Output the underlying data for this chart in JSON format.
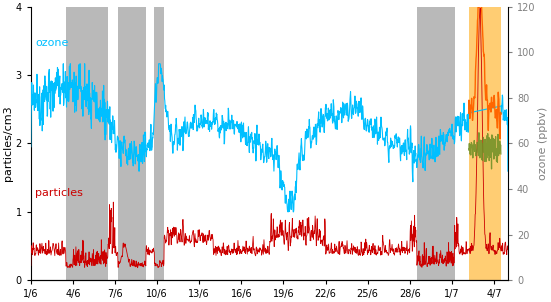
{
  "ylabel_left": "particles/cm3",
  "ylabel_right": "ozone (ppbv)",
  "xlim": [
    0,
    34
  ],
  "ylim_left": [
    0,
    4
  ],
  "ylim_right": [
    0,
    120
  ],
  "yticks_left": [
    0,
    1,
    2,
    3,
    4
  ],
  "yticks_right": [
    0,
    20,
    40,
    60,
    80,
    100,
    120
  ],
  "xtick_labels": [
    "1/6",
    "4/6",
    "7/6",
    "10/6",
    "13/6",
    "16/6",
    "19/6",
    "22/6",
    "25/6",
    "28/6",
    "1/7",
    "4/7"
  ],
  "xtick_positions": [
    0,
    3,
    6,
    9,
    12,
    15,
    18,
    21,
    24,
    27,
    30,
    33
  ],
  "ozone_label": "ozone",
  "particles_label": "particles",
  "ozone_color": "#00BFFF",
  "particles_color": "#CC0000",
  "orange_region_color": "#FFA500",
  "grey_regions": [
    [
      2.5,
      5.5
    ],
    [
      6.2,
      8.2
    ],
    [
      8.8,
      9.5
    ],
    [
      27.5,
      30.2
    ]
  ],
  "orange_region": [
    31.2,
    33.5
  ],
  "grey_color": "#808080",
  "grey_alpha": 0.55,
  "orange_alpha": 0.55,
  "background_color": "#ffffff",
  "seed": 12345,
  "n_days": 34,
  "pts_per_day": 48
}
